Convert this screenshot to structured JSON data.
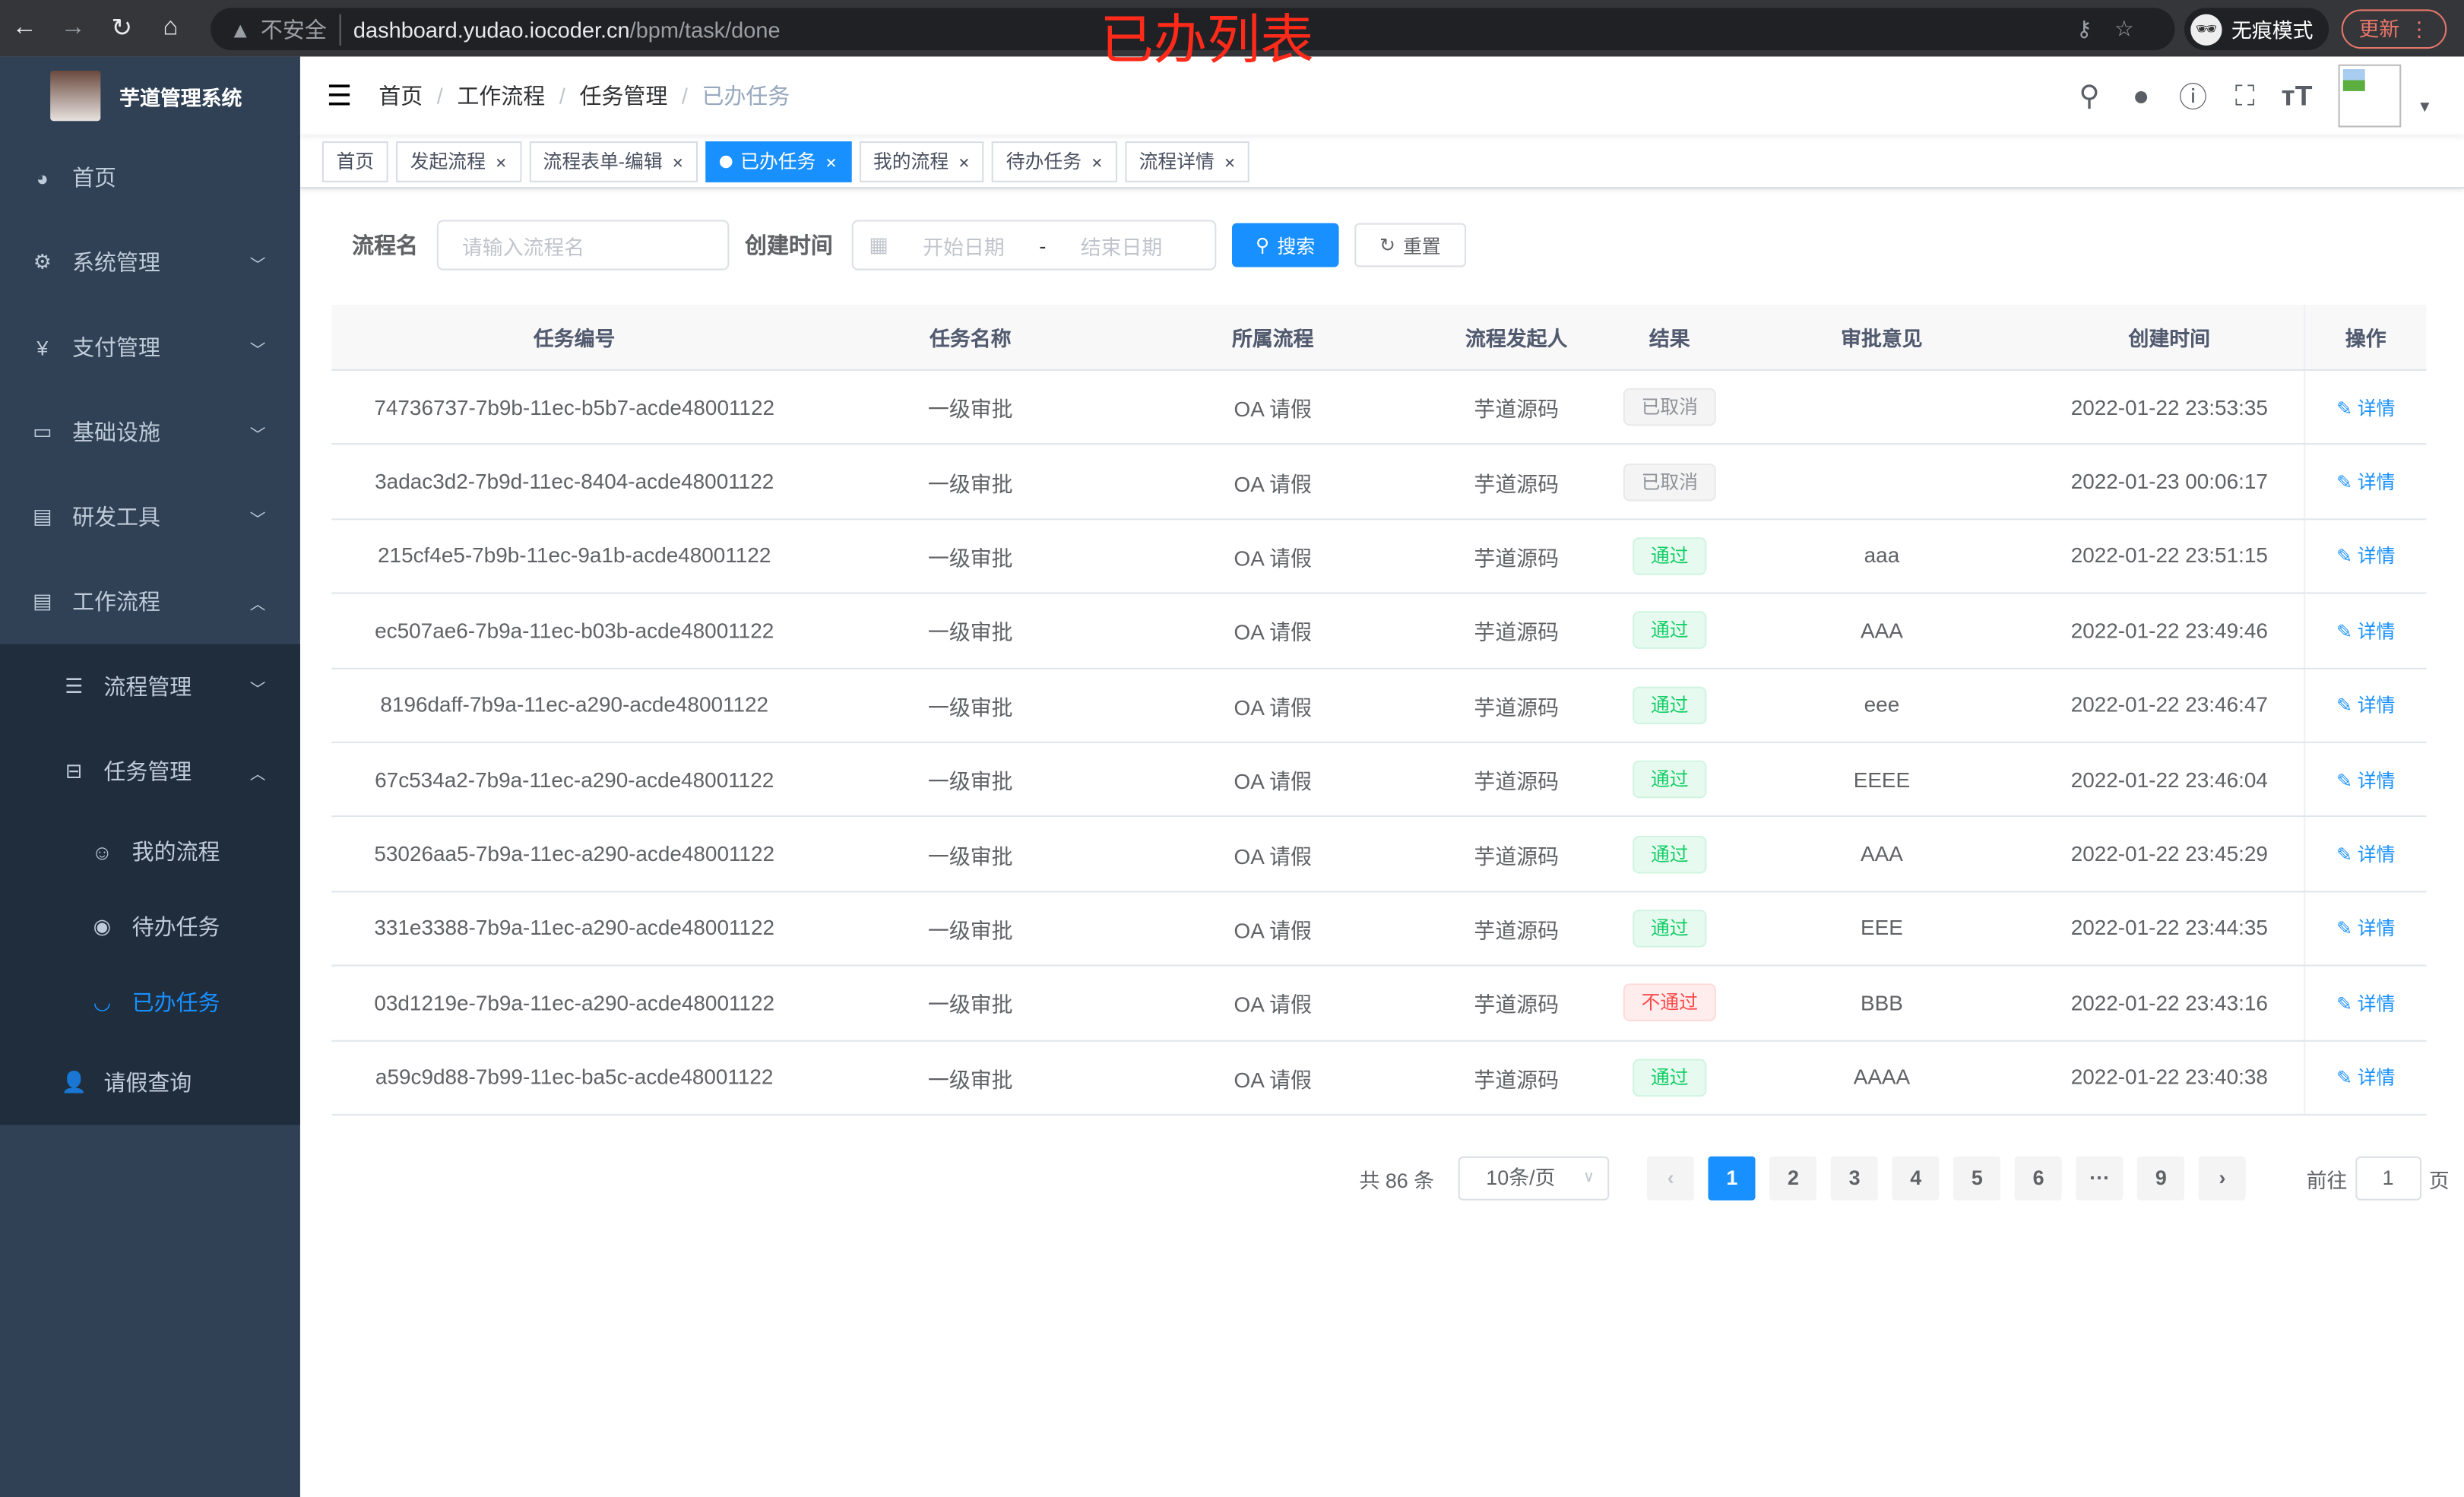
{
  "browser": {
    "security": "不安全",
    "url_host": "dashboard.yudao.iocoder.cn",
    "url_path": "/bpm/task/done",
    "incognito": "无痕模式",
    "update": "更新"
  },
  "overlay_title": "已办列表",
  "sidebar": {
    "title": "芋道管理系统",
    "items": [
      {
        "label": "首页",
        "icon": "dashboard-icon",
        "chev": ""
      },
      {
        "label": "系统管理",
        "icon": "gear-icon",
        "chev": "﹀"
      },
      {
        "label": "支付管理",
        "icon": "yen-icon",
        "chev": "﹀"
      },
      {
        "label": "基础设施",
        "icon": "monitor-icon",
        "chev": "﹀"
      },
      {
        "label": "研发工具",
        "icon": "toolbox-icon",
        "chev": "﹀"
      },
      {
        "label": "工作流程",
        "icon": "toolbox-icon",
        "chev": "︿"
      }
    ],
    "workflow_sub": [
      {
        "label": "流程管理",
        "chev": "﹀"
      },
      {
        "label": "任务管理",
        "chev": "︿"
      }
    ],
    "task_sub": [
      {
        "label": "我的流程"
      },
      {
        "label": "待办任务"
      },
      {
        "label": "已办任务"
      }
    ],
    "leave": "请假查询"
  },
  "breadcrumb": [
    "首页",
    "工作流程",
    "任务管理",
    "已办任务"
  ],
  "tags": [
    "首页",
    "发起流程",
    "流程表单-编辑",
    "已办任务",
    "我的流程",
    "待办任务",
    "流程详情"
  ],
  "form": {
    "name_label": "流程名",
    "name_placeholder": "请输入流程名",
    "time_label": "创建时间",
    "start_placeholder": "开始日期",
    "sep": "-",
    "end_placeholder": "结束日期",
    "search": "搜索",
    "reset": "重置"
  },
  "table": {
    "columns": [
      "任务编号",
      "任务名称",
      "所属流程",
      "流程发起人",
      "结果",
      "审批意见",
      "创建时间",
      "操作"
    ],
    "action": "详情",
    "rows": [
      {
        "id": "74736737-7b9b-11ec-b5b7-acde48001122",
        "name": "一级审批",
        "process": "OA 请假",
        "starter": "芋道源码",
        "result": "已取消",
        "rtype": "gray",
        "comment": "",
        "time": "2022-01-22 23:53:35"
      },
      {
        "id": "3adac3d2-7b9d-11ec-8404-acde48001122",
        "name": "一级审批",
        "process": "OA 请假",
        "starter": "芋道源码",
        "result": "已取消",
        "rtype": "gray",
        "comment": "",
        "time": "2022-01-23 00:06:17"
      },
      {
        "id": "215cf4e5-7b9b-11ec-9a1b-acde48001122",
        "name": "一级审批",
        "process": "OA 请假",
        "starter": "芋道源码",
        "result": "通过",
        "rtype": "green",
        "comment": "aaa",
        "time": "2022-01-22 23:51:15"
      },
      {
        "id": "ec507ae6-7b9a-11ec-b03b-acde48001122",
        "name": "一级审批",
        "process": "OA 请假",
        "starter": "芋道源码",
        "result": "通过",
        "rtype": "green",
        "comment": "AAA",
        "time": "2022-01-22 23:49:46"
      },
      {
        "id": "8196daff-7b9a-11ec-a290-acde48001122",
        "name": "一级审批",
        "process": "OA 请假",
        "starter": "芋道源码",
        "result": "通过",
        "rtype": "green",
        "comment": "eee",
        "time": "2022-01-22 23:46:47"
      },
      {
        "id": "67c534a2-7b9a-11ec-a290-acde48001122",
        "name": "一级审批",
        "process": "OA 请假",
        "starter": "芋道源码",
        "result": "通过",
        "rtype": "green",
        "comment": "EEEE",
        "time": "2022-01-22 23:46:04"
      },
      {
        "id": "53026aa5-7b9a-11ec-a290-acde48001122",
        "name": "一级审批",
        "process": "OA 请假",
        "starter": "芋道源码",
        "result": "通过",
        "rtype": "green",
        "comment": "AAA",
        "time": "2022-01-22 23:45:29"
      },
      {
        "id": "331e3388-7b9a-11ec-a290-acde48001122",
        "name": "一级审批",
        "process": "OA 请假",
        "starter": "芋道源码",
        "result": "通过",
        "rtype": "green",
        "comment": "EEE",
        "time": "2022-01-22 23:44:35"
      },
      {
        "id": "03d1219e-7b9a-11ec-a290-acde48001122",
        "name": "一级审批",
        "process": "OA 请假",
        "starter": "芋道源码",
        "result": "不通过",
        "rtype": "red",
        "comment": "BBB",
        "time": "2022-01-22 23:43:16"
      },
      {
        "id": "a59c9d88-7b99-11ec-ba5c-acde48001122",
        "name": "一级审批",
        "process": "OA 请假",
        "starter": "芋道源码",
        "result": "通过",
        "rtype": "green",
        "comment": "AAAA",
        "time": "2022-01-22 23:40:38"
      }
    ]
  },
  "pagination": {
    "total": "共 86 条",
    "page_size": "10条/页",
    "pages": [
      "1",
      "2",
      "3",
      "4",
      "5",
      "6",
      "···",
      "9"
    ],
    "current": "1",
    "goto_label": "前往",
    "goto_value": "1",
    "goto_suffix": "页"
  },
  "colors": {
    "accent": "#1890ff",
    "sidebar": "#304156",
    "submenu": "#1f2d3d",
    "success": "#13ce66",
    "danger": "#ff4949"
  }
}
